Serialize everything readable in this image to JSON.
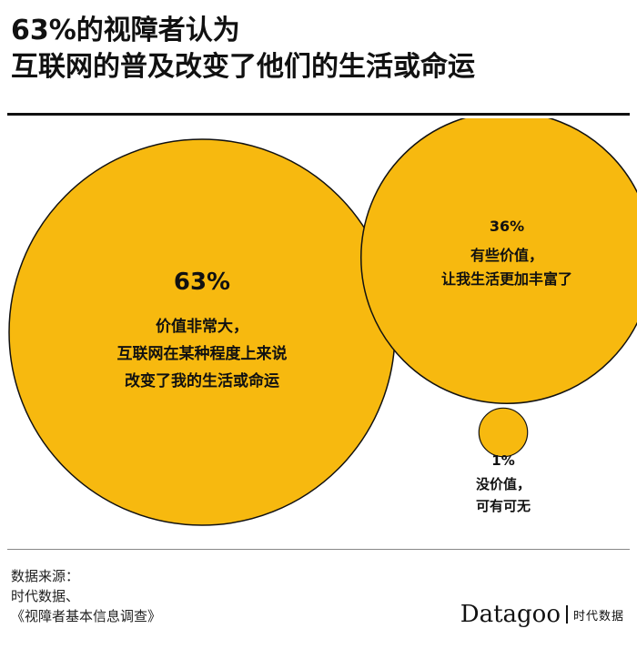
{
  "title": {
    "line1": "63%的视障者认为",
    "line2": "互联网的普及改变了他们的生活或命运"
  },
  "chart_data": {
    "type": "bubble",
    "title": "63%的视障者认为互联网的普及改变了他们的生活或命运",
    "unit": "%",
    "series": [
      {
        "value": 63,
        "value_label": "63%",
        "label_lines": [
          "价值非常大，",
          "互联网在某种程度上来说",
          "改变了我的生活或命运"
        ]
      },
      {
        "value": 36,
        "value_label": "36%",
        "label_lines": [
          "有些价值，",
          "让我生活更加丰富了"
        ]
      },
      {
        "value": 1,
        "value_label": "1%",
        "label_lines": [
          "没价值，",
          "可有可无"
        ]
      }
    ],
    "colors": {
      "fill": "#F7B90F",
      "stroke": "#111111"
    }
  },
  "footer": {
    "source_lines": [
      "数据来源：",
      "时代数据、",
      "《视障者基本信息调查》"
    ],
    "brand_name": "Datagoo",
    "brand_sub": "时代数据"
  }
}
